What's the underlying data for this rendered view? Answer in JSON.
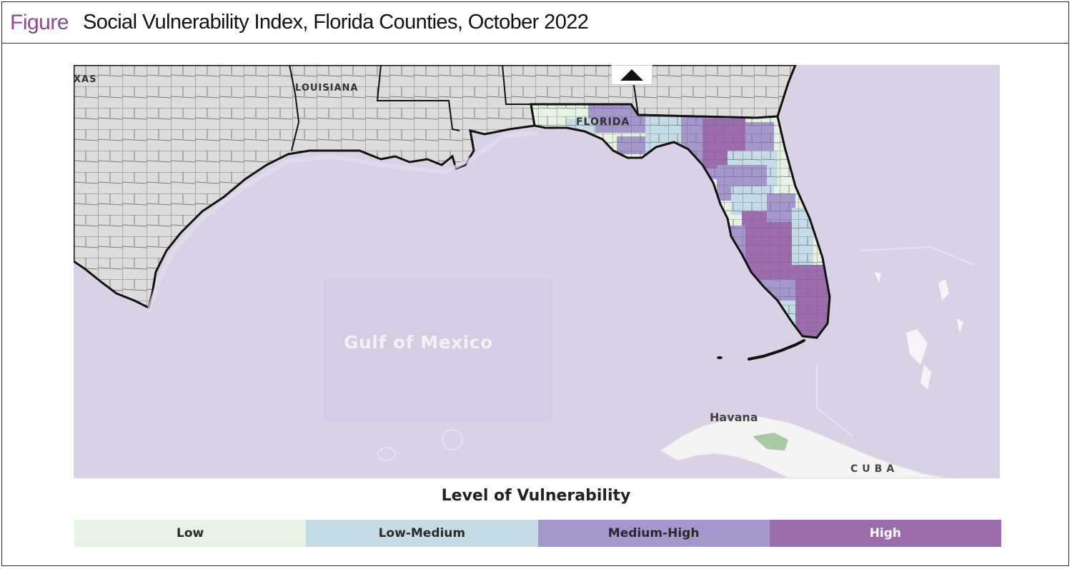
{
  "figure": {
    "label": "Figure",
    "title": "Social Vulnerability Index, Florida Counties, October 2022"
  },
  "map": {
    "labels": {
      "texas": "XAS",
      "louisiana": "LOUISIANA",
      "florida": "FLORIDA",
      "gulf": "Gulf of Mexico",
      "havana": "Havana",
      "cuba": "CUBA"
    },
    "north_arrow_icon": "north-arrow-icon",
    "colors": {
      "water": "#d9d1e6",
      "land_other": "#dcdcdc",
      "cuba_land": "#f4f4f4"
    }
  },
  "legend": {
    "title": "Level of Vulnerability",
    "items": [
      {
        "label": "Low",
        "color": "#e6f2e4"
      },
      {
        "label": "Low-Medium",
        "color": "#c5dbe6"
      },
      {
        "label": "Medium-High",
        "color": "#a596cc"
      },
      {
        "label": "High",
        "color": "#9c6cad"
      }
    ]
  }
}
